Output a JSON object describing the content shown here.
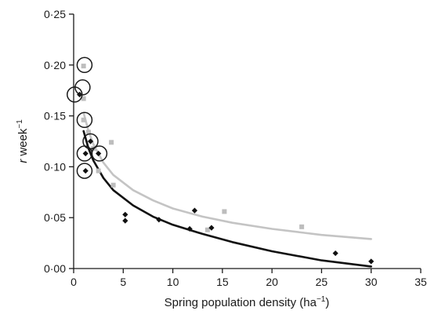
{
  "chart_data": {
    "type": "scatter",
    "title": "",
    "xlabel": {
      "main": "Spring population density (ha",
      "sup": "−1",
      "close": ")"
    },
    "ylabel": {
      "italic": "r",
      "rest": " week",
      "sup": "−1"
    },
    "xlim": [
      0,
      35
    ],
    "ylim": [
      0,
      0.25
    ],
    "x_ticks": [
      0,
      5,
      10,
      15,
      20,
      25,
      30,
      35
    ],
    "x_tick_labels": [
      "0",
      "5",
      "10",
      "15",
      "20",
      "25",
      "30",
      "35"
    ],
    "y_ticks": [
      0,
      0.05,
      0.1,
      0.15,
      0.2,
      0.25
    ],
    "y_tick_labels": [
      "0·00",
      "0·05",
      "0·10",
      "0·15",
      "0·20",
      "0·25"
    ],
    "grid": false,
    "legend": "none",
    "series": [
      {
        "marker": "square",
        "color": "#bdbdbd",
        "points": [
          {
            "x": 1.0,
            "y": 0.199
          },
          {
            "x": 1.0,
            "y": 0.167
          },
          {
            "x": 1.0,
            "y": 0.146
          },
          {
            "x": 1.5,
            "y": 0.134
          },
          {
            "x": 2.0,
            "y": 0.118
          },
          {
            "x": 2.5,
            "y": 0.096
          },
          {
            "x": 3.8,
            "y": 0.124
          },
          {
            "x": 4.0,
            "y": 0.082
          },
          {
            "x": 13.5,
            "y": 0.038
          },
          {
            "x": 15.2,
            "y": 0.056
          },
          {
            "x": 23.0,
            "y": 0.041
          }
        ]
      },
      {
        "marker": "diamond",
        "color": "#111111",
        "points": [
          {
            "x": 0.6,
            "y": 0.171
          },
          {
            "x": 1.2,
            "y": 0.113
          },
          {
            "x": 1.2,
            "y": 0.096
          },
          {
            "x": 1.7,
            "y": 0.125
          },
          {
            "x": 2.5,
            "y": 0.113
          },
          {
            "x": 5.2,
            "y": 0.053
          },
          {
            "x": 5.2,
            "y": 0.047
          },
          {
            "x": 8.6,
            "y": 0.048
          },
          {
            "x": 11.7,
            "y": 0.039
          },
          {
            "x": 12.2,
            "y": 0.057
          },
          {
            "x": 13.9,
            "y": 0.04
          },
          {
            "x": 26.4,
            "y": 0.015
          },
          {
            "x": 30.0,
            "y": 0.007
          }
        ]
      }
    ],
    "circled_points": [
      {
        "x": 1.1,
        "y": 0.2
      },
      {
        "x": 0.9,
        "y": 0.178
      },
      {
        "x": 0.1,
        "y": 0.171
      },
      {
        "x": 1.1,
        "y": 0.146
      },
      {
        "x": 1.7,
        "y": 0.125
      },
      {
        "x": 1.1,
        "y": 0.113
      },
      {
        "x": 2.6,
        "y": 0.113
      },
      {
        "x": 1.1,
        "y": 0.096
      }
    ],
    "fit_lines": [
      {
        "color": "#c4c4c4",
        "points": [
          {
            "x": 1.0,
            "y": 0.153
          },
          {
            "x": 1.5,
            "y": 0.135
          },
          {
            "x": 2.0,
            "y": 0.122
          },
          {
            "x": 3.0,
            "y": 0.104
          },
          {
            "x": 4.0,
            "y": 0.092
          },
          {
            "x": 6.0,
            "y": 0.077
          },
          {
            "x": 8.0,
            "y": 0.067
          },
          {
            "x": 10.0,
            "y": 0.059
          },
          {
            "x": 13.0,
            "y": 0.051
          },
          {
            "x": 16.0,
            "y": 0.045
          },
          {
            "x": 20.0,
            "y": 0.039
          },
          {
            "x": 25.0,
            "y": 0.033
          },
          {
            "x": 30.0,
            "y": 0.029
          }
        ]
      },
      {
        "color": "#111111",
        "points": [
          {
            "x": 1.0,
            "y": 0.135
          },
          {
            "x": 1.5,
            "y": 0.118
          },
          {
            "x": 2.0,
            "y": 0.106
          },
          {
            "x": 3.0,
            "y": 0.089
          },
          {
            "x": 4.0,
            "y": 0.077
          },
          {
            "x": 6.0,
            "y": 0.062
          },
          {
            "x": 8.0,
            "y": 0.051
          },
          {
            "x": 10.0,
            "y": 0.043
          },
          {
            "x": 13.0,
            "y": 0.034
          },
          {
            "x": 16.0,
            "y": 0.026
          },
          {
            "x": 20.0,
            "y": 0.017
          },
          {
            "x": 25.0,
            "y": 0.008
          },
          {
            "x": 30.0,
            "y": 0.002
          }
        ]
      }
    ]
  }
}
